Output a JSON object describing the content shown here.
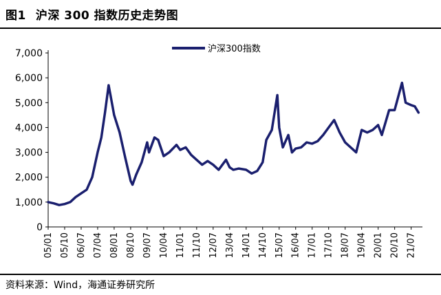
{
  "figure": {
    "label": "图1",
    "title": "沪深 300 指数历史走势图"
  },
  "source": "资料来源：Wind，海通证券研究所",
  "chart_data": {
    "type": "line",
    "legend": [
      "沪深300指数"
    ],
    "legend_position": "top-center",
    "grid": false,
    "ylim": [
      0,
      7000
    ],
    "yticks": [
      "0",
      "1,000",
      "2,000",
      "3,000",
      "4,000",
      "5,000",
      "6,000",
      "7,000"
    ],
    "xlabels": [
      "05/01",
      "05/10",
      "06/07",
      "07/04",
      "08/01",
      "08/10",
      "09/07",
      "10/04",
      "11/01",
      "11/10",
      "12/07",
      "13/04",
      "14/01",
      "14/10",
      "15/07",
      "16/04",
      "17/01",
      "17/10",
      "18/07",
      "19/04",
      "20/01",
      "20/10",
      "21/07"
    ],
    "series": [
      {
        "name": "沪深300指数",
        "color": "#1a1f6e",
        "x": [
          "05/01",
          "05/04",
          "05/07",
          "05/10",
          "06/01",
          "06/04",
          "06/07",
          "06/10",
          "07/01",
          "07/04",
          "07/06",
          "07/08",
          "07/10",
          "07/11",
          "08/01",
          "08/04",
          "08/07",
          "08/10",
          "08/11",
          "09/01",
          "09/04",
          "09/07",
          "09/08",
          "09/11",
          "10/01",
          "10/04",
          "10/07",
          "10/11",
          "11/01",
          "11/04",
          "11/07",
          "11/10",
          "12/01",
          "12/04",
          "12/07",
          "12/10",
          "13/02",
          "13/04",
          "13/06",
          "13/09",
          "14/01",
          "14/04",
          "14/07",
          "14/10",
          "14/12",
          "15/03",
          "15/06",
          "15/07",
          "15/09",
          "15/12",
          "16/02",
          "16/04",
          "16/07",
          "16/10",
          "17/01",
          "17/04",
          "17/07",
          "17/10",
          "18/01",
          "18/04",
          "18/07",
          "18/10",
          "19/01",
          "19/04",
          "19/07",
          "19/10",
          "20/01",
          "20/03",
          "20/07",
          "20/10",
          "21/02",
          "21/04",
          "21/07",
          "21/09",
          "21/11"
        ],
        "values": [
          1000,
          950,
          880,
          920,
          1000,
          1200,
          1350,
          1500,
          2000,
          3000,
          3600,
          4600,
          5700,
          5300,
          4500,
          3800,
          2800,
          1850,
          1700,
          2100,
          2600,
          3400,
          3000,
          3600,
          3500,
          2850,
          3000,
          3300,
          3100,
          3200,
          2900,
          2700,
          2500,
          2650,
          2500,
          2300,
          2700,
          2400,
          2300,
          2350,
          2300,
          2150,
          2250,
          2600,
          3500,
          3900,
          5300,
          4000,
          3200,
          3700,
          3000,
          3150,
          3200,
          3400,
          3350,
          3450,
          3700,
          4000,
          4300,
          3800,
          3400,
          3200,
          3000,
          3900,
          3800,
          3900,
          4100,
          3700,
          4700,
          4700,
          5800,
          5000,
          4900,
          4850,
          4600
        ]
      }
    ]
  }
}
